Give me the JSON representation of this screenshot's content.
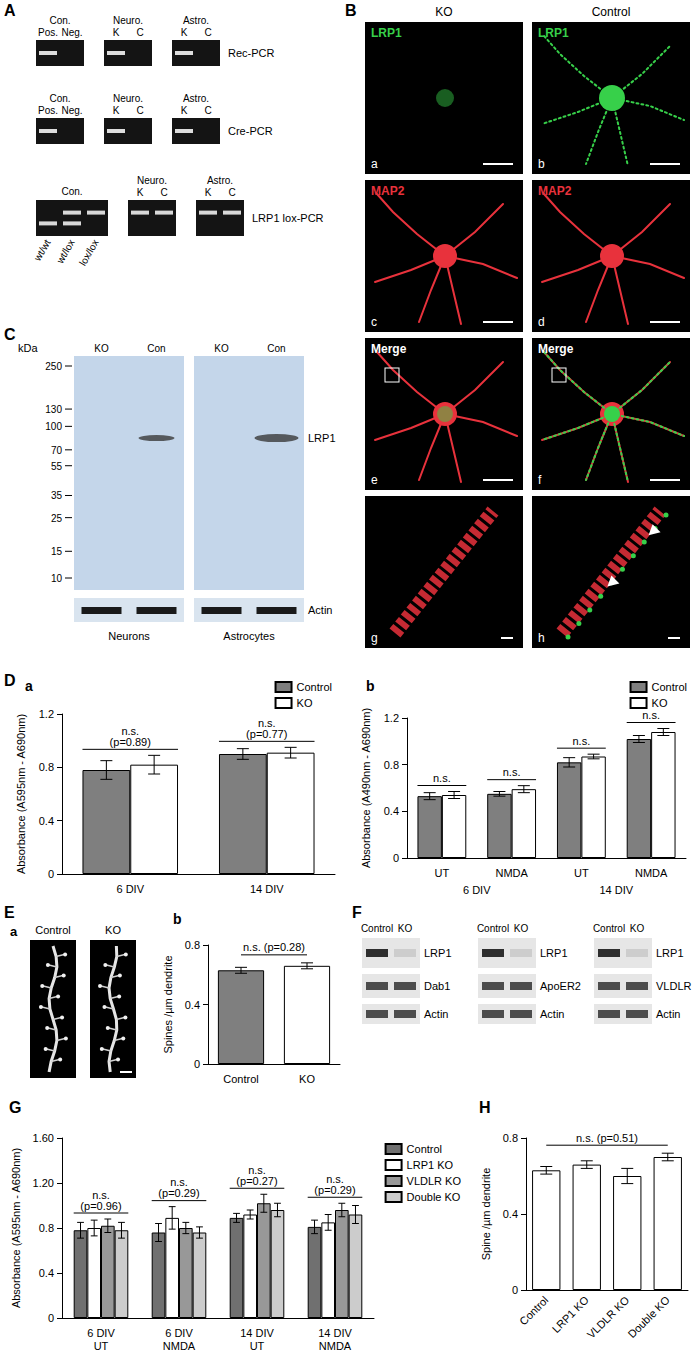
{
  "panels": {
    "A": {
      "letter": "A",
      "gels": [
        {
          "name": "Rec-PCR",
          "groups": [
            {
              "label": "Con.",
              "lanes": [
                "Pos.",
                "Neg."
              ]
            },
            {
              "label": "Neuro.",
              "lanes": [
                "K",
                "C"
              ]
            },
            {
              "label": "Astro.",
              "lanes": [
                "K",
                "C"
              ]
            }
          ]
        },
        {
          "name": "Cre-PCR",
          "groups": [
            {
              "label": "Con.",
              "lanes": [
                "Pos.",
                "Neg."
              ]
            },
            {
              "label": "Neuro.",
              "lanes": [
                "K",
                "C"
              ]
            },
            {
              "label": "Astro.",
              "lanes": [
                "K",
                "C"
              ]
            }
          ]
        },
        {
          "name": "LRP1 lox-PCR",
          "groups": [
            {
              "label": "Con.",
              "lanes_below": [
                "wt/wt",
                "wt/lox",
                "lox/lox"
              ]
            },
            {
              "label": "Neuro.",
              "lanes": [
                "K",
                "C"
              ]
            },
            {
              "label": "Astro.",
              "lanes": [
                "K",
                "C"
              ]
            }
          ]
        }
      ]
    },
    "B": {
      "letter": "B",
      "columns": [
        "KO",
        "Control"
      ],
      "rows": [
        {
          "label": "LRP1",
          "panels": [
            "a",
            "b"
          ]
        },
        {
          "label": "MAP2",
          "panels": [
            "c",
            "d"
          ]
        },
        {
          "label": "Merge",
          "panels": [
            "e",
            "f"
          ]
        },
        {
          "panels": [
            "g",
            "h"
          ]
        }
      ]
    },
    "C": {
      "letter": "C",
      "unit": "kDa",
      "markers": [
        250,
        130,
        100,
        70,
        55,
        35,
        25,
        15,
        10
      ],
      "lanes": [
        "KO",
        "Con"
      ],
      "groups": [
        "Neurons",
        "Astrocytes"
      ],
      "bands": [
        "LRP1",
        "Actin"
      ]
    },
    "D": {
      "letter": "D"
    },
    "E": {
      "letter": "E",
      "sub": "a",
      "images": [
        "Control",
        "KO"
      ]
    },
    "F": {
      "letter": "F",
      "blots": [
        {
          "lanes": [
            "Control",
            "KO"
          ],
          "rows": [
            "LRP1",
            "Dab1",
            "Actin"
          ]
        },
        {
          "lanes": [
            "Control",
            "KO"
          ],
          "rows": [
            "LRP1",
            "ApoER2",
            "Actin"
          ]
        },
        {
          "lanes": [
            "Control",
            "KO"
          ],
          "rows": [
            "LRP1",
            "VLDLR",
            "Actin"
          ]
        }
      ]
    }
  },
  "chart_data": [
    {
      "type": "bar",
      "title": "a",
      "y_label": "Absorbance (A595nm - A690nm)",
      "categories": [
        "6 DIV",
        "14 DIV"
      ],
      "series": [
        {
          "name": "Control",
          "color": "#7f7f7f",
          "values": [
            0.78,
            0.9
          ],
          "errors": [
            0.07,
            0.04
          ]
        },
        {
          "name": "KO",
          "color": "#ffffff",
          "values": [
            0.82,
            0.91
          ],
          "errors": [
            0.07,
            0.04
          ]
        }
      ],
      "ylim": [
        0,
        1.2
      ],
      "yticks": [
        0,
        0.4,
        0.8,
        1.2
      ],
      "grid": false,
      "legend": "upper right",
      "annotations": [
        "n.s.\n(p=0.89)",
        "n.s.\n(p=0.77)"
      ]
    },
    {
      "type": "bar",
      "title": "b",
      "y_label": "Absorbance (A490nm - A690nm)",
      "categories": [
        "UT",
        "NMDA",
        "UT",
        "NMDA"
      ],
      "groups": [
        "6 DIV",
        "14 DIV"
      ],
      "series": [
        {
          "name": "Control",
          "color": "#7f7f7f",
          "values": [
            0.53,
            0.55,
            0.82,
            1.02
          ],
          "errors": [
            0.03,
            0.02,
            0.04,
            0.03
          ]
        },
        {
          "name": "KO",
          "color": "#ffffff",
          "values": [
            0.54,
            0.59,
            0.87,
            1.08
          ],
          "errors": [
            0.03,
            0.03,
            0.02,
            0.03
          ]
        }
      ],
      "ylim": [
        0,
        1.2
      ],
      "yticks": [
        0,
        0.4,
        0.8,
        1.2
      ],
      "grid": false,
      "legend": "upper right",
      "annotations": [
        "n.s.",
        "n.s.",
        "n.s.",
        "n.s."
      ]
    },
    {
      "type": "bar",
      "title": "b",
      "y_label": "Spines /µm dendrite",
      "categories": [
        "Control",
        "KO"
      ],
      "colors": [
        "#7f7f7f",
        "#ffffff"
      ],
      "series": [
        {
          "values": [
            0.63,
            0.66
          ],
          "errors": [
            0.02,
            0.02
          ]
        }
      ],
      "ylim": [
        0,
        0.8
      ],
      "yticks": [
        0,
        0.4,
        0.8
      ],
      "grid": false,
      "annotation": "n.s. (p=0.28)"
    },
    {
      "type": "bar",
      "title": "G",
      "y_label": "Absorbance (A595nm - A690nm)",
      "categories": [
        "6 DIV\nUT",
        "6 DIV\nNMDA",
        "14 DIV\nUT",
        "14 DIV\nNMDA"
      ],
      "series": [
        {
          "name": "Control",
          "color": "#707070",
          "values": [
            0.78,
            0.76,
            0.89,
            0.81
          ],
          "errors": [
            0.07,
            0.08,
            0.04,
            0.06
          ]
        },
        {
          "name": "LRP1 KO",
          "color": "#ffffff",
          "values": [
            0.8,
            0.89,
            0.92,
            0.85
          ],
          "errors": [
            0.07,
            0.1,
            0.04,
            0.07
          ]
        },
        {
          "name": "VLDLR KO",
          "color": "#989898",
          "values": [
            0.82,
            0.8,
            1.02,
            0.96
          ],
          "errors": [
            0.06,
            0.05,
            0.08,
            0.06
          ]
        },
        {
          "name": "Double KO",
          "color": "#cccccc",
          "values": [
            0.78,
            0.76,
            0.96,
            0.92
          ],
          "errors": [
            0.07,
            0.05,
            0.06,
            0.08
          ]
        }
      ],
      "ylim": [
        0,
        1.6
      ],
      "yticks": [
        0,
        0.4,
        0.8,
        {
          "value": 1.2,
          "label": "1.20"
        },
        {
          "value": 1.6,
          "label": "1.60"
        }
      ],
      "grid": false,
      "legend": "right",
      "annotations": [
        "n.s.\n(p=0.96)",
        "n.s.\n(p=0.29)",
        "n.s.\n(p=0.27)",
        "n.s.\n(p=0.29)"
      ]
    },
    {
      "type": "bar",
      "title": "H",
      "y_label": "Spine /µm dendrite",
      "categories": [
        "Control",
        "LRP1 KO",
        "VLDLR KO",
        "Double KO"
      ],
      "color": "#ffffff",
      "series": [
        {
          "values": [
            0.63,
            0.66,
            0.6,
            0.7
          ],
          "errors": [
            0.02,
            0.02,
            0.04,
            0.02
          ]
        }
      ],
      "ylim": [
        0,
        0.8
      ],
      "yticks": [
        0,
        0.4,
        0.8
      ],
      "grid": false,
      "annotation": "n.s. (p=0.51)"
    }
  ]
}
